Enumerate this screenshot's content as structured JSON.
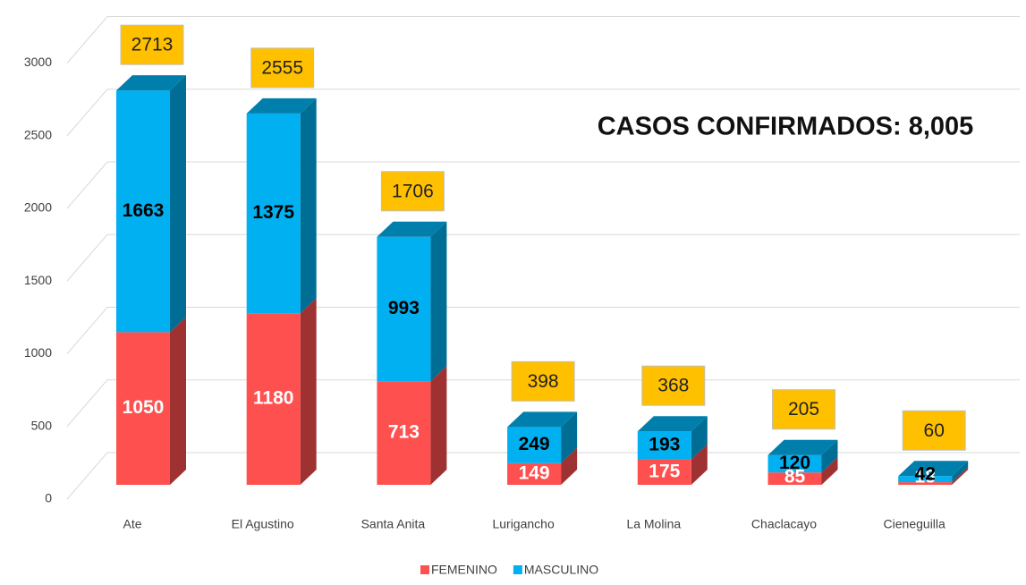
{
  "chart_data": {
    "type": "bar3d_stacked",
    "title": "CASOS CONFIRMADOS: 8,005",
    "categories": [
      "Ate",
      "El Agustino",
      "Santa Anita",
      "Lurigancho",
      "La Molina",
      "Chaclacayo",
      "Cieneguilla"
    ],
    "series": [
      {
        "name": "FEMENINO",
        "color": "#ff5050",
        "values": [
          1050,
          1180,
          713,
          149,
          175,
          85,
          18
        ]
      },
      {
        "name": "MASCULINO",
        "color": "#00b0f0",
        "values": [
          1663,
          1375,
          993,
          249,
          193,
          120,
          42
        ]
      }
    ],
    "totals": [
      2713,
      2555,
      1706,
      398,
      368,
      205,
      60
    ],
    "total_color": "#ffc000",
    "ylim": [
      0,
      3000
    ],
    "yticks": [
      0,
      500,
      1000,
      1500,
      2000,
      2500,
      3000
    ],
    "grid": true,
    "legend": "bottom"
  }
}
